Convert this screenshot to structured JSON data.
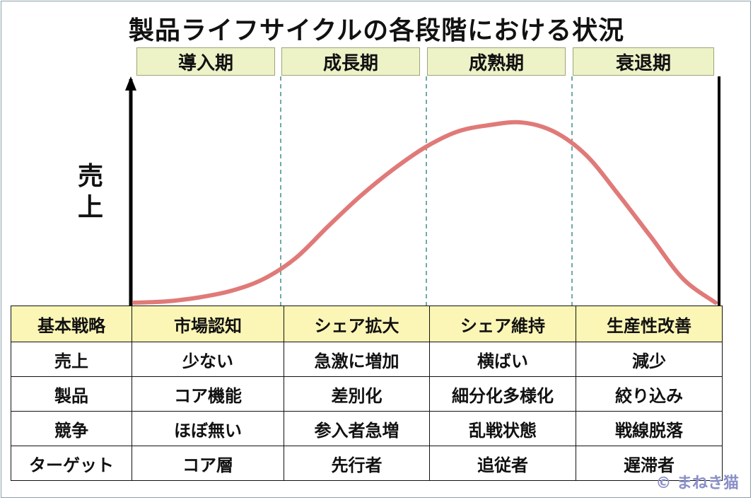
{
  "title": "製品ライフサイクルの各段階における状況",
  "stages": [
    "導入期",
    "成長期",
    "成熟期",
    "衰退期"
  ],
  "y_axis_label": "売上",
  "chart_data": {
    "type": "line",
    "series": [
      {
        "values": [
          0,
          1,
          4,
          9,
          18,
          34,
          58,
          81,
          101,
          118,
          130,
          135,
          137,
          130,
          112,
          82,
          50,
          18,
          0
        ]
      }
    ],
    "color": "#e07a78"
  },
  "table": {
    "header": [
      "基本戦略",
      "市場認知",
      "シェア拡大",
      "シェア維持",
      "生産性改善"
    ],
    "rows": [
      [
        "売上",
        "少ない",
        "急激に増加",
        "横ばい",
        "減少"
      ],
      [
        "製品",
        "コア機能",
        "差別化",
        "細分化多様化",
        "絞り込み"
      ],
      [
        "競争",
        "ほぼ無い",
        "参入者急増",
        "乱戦状態",
        "戦線脱落"
      ],
      [
        "ターゲット",
        "コア層",
        "先行者",
        "追従者",
        "遅滞者"
      ]
    ]
  },
  "credit": "© まねき猫"
}
